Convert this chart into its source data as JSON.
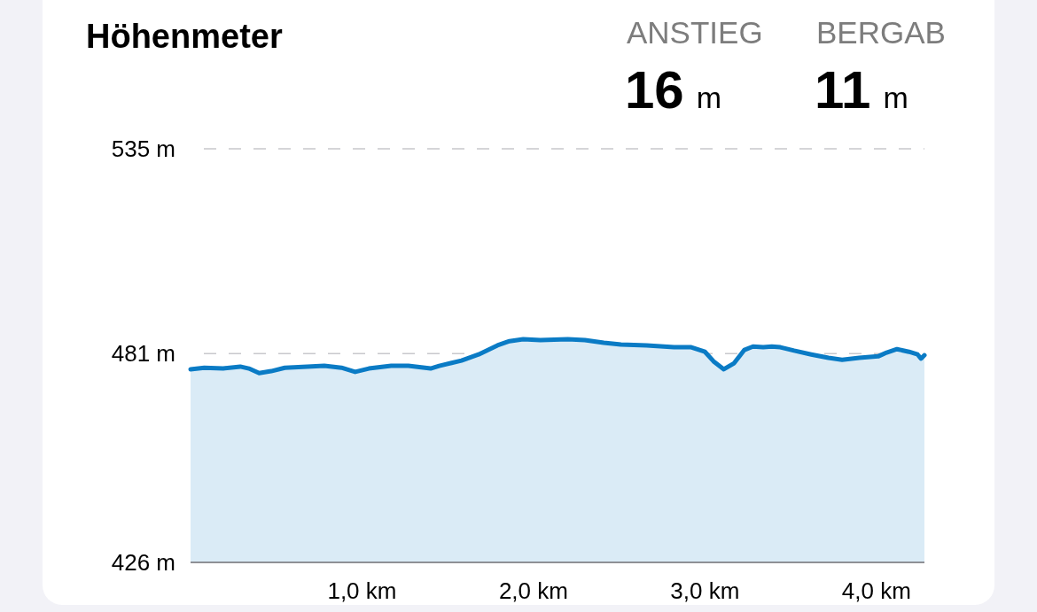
{
  "chart_data": {
    "type": "area",
    "title": "Höhenmeter",
    "annotations": [
      "ANSTIEG",
      "16 m",
      "BERGAB",
      "11 m"
    ],
    "x": [
      0,
      0.08,
      0.19,
      0.29,
      0.34,
      0.4,
      0.47,
      0.55,
      0.68,
      0.78,
      0.88,
      0.96,
      1.04,
      1.17,
      1.27,
      1.4,
      1.45,
      1.58,
      1.68,
      1.79,
      1.86,
      1.94,
      2.04,
      2.2,
      2.3,
      2.41,
      2.51,
      2.66,
      2.82,
      2.92,
      3.0,
      3.05,
      3.11,
      3.17,
      3.23,
      3.28,
      3.34,
      3.39,
      3.44,
      3.52,
      3.62,
      3.72,
      3.8,
      3.9,
      4.01,
      4.06,
      4.12,
      4.19,
      4.24,
      4.26,
      4.28
    ],
    "values": [
      476.9,
      477.3,
      477.1,
      477.6,
      477.1,
      475.9,
      476.4,
      477.3,
      477.6,
      477.8,
      477.3,
      476.2,
      477.1,
      477.8,
      477.8,
      477.1,
      477.8,
      479.2,
      480.8,
      483.2,
      484.3,
      484.8,
      484.6,
      484.8,
      484.6,
      483.9,
      483.4,
      483.2,
      482.7,
      482.7,
      481.5,
      479.0,
      476.9,
      478.5,
      482.0,
      482.9,
      482.7,
      482.9,
      482.7,
      481.8,
      480.8,
      479.9,
      479.4,
      479.9,
      480.3,
      481.3,
      482.2,
      481.5,
      480.8,
      479.7,
      480.6
    ],
    "color": "#0a7bc5",
    "xlim": [
      0,
      4.28
    ],
    "xticks": [
      {
        "value": 1,
        "label": "1,0 km"
      },
      {
        "value": 2,
        "label": "2,0 km"
      },
      {
        "value": 3,
        "label": "3,0 km"
      },
      {
        "value": 4,
        "label": "4,0 km"
      }
    ],
    "ylim": [
      426,
      535
    ],
    "yticks": [
      {
        "value": 426,
        "label": "426 m"
      },
      {
        "value": 481,
        "label": "481 m"
      },
      {
        "value": 535,
        "label": "535 m"
      }
    ],
    "grid": "y",
    "line_style": "solid"
  }
}
